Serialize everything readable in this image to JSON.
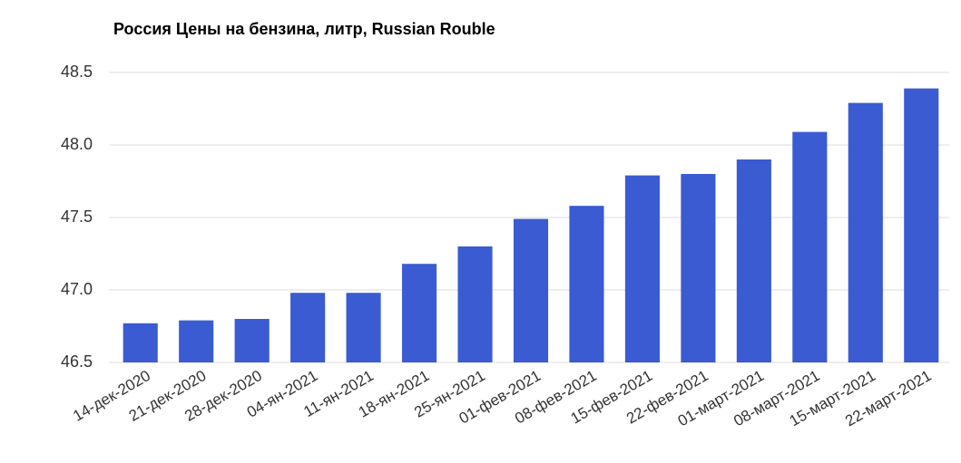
{
  "chart_data": {
    "type": "bar",
    "title": "Россия Цены на бензина, литр, Russian Rouble",
    "categories": [
      "14-дек-2020",
      "21-дек-2020",
      "28-дек-2020",
      "04-ян-2021",
      "11-ян-2021",
      "18-ян-2021",
      "25-ян-2021",
      "01-фев-2021",
      "08-фев-2021",
      "15-фев-2021",
      "22-фев-2021",
      "01-март-2021",
      "08-март-2021",
      "15-март-2021",
      "22-март-2021"
    ],
    "values": [
      46.77,
      46.79,
      46.8,
      46.98,
      46.98,
      47.18,
      47.3,
      47.49,
      47.58,
      47.79,
      47.8,
      47.9,
      48.09,
      48.29,
      48.39
    ],
    "color": "#3a5bd1",
    "ylim": [
      46.5,
      48.5
    ],
    "yticks": [
      46.5,
      {
        "value": 47,
        "label": "47.0"
      },
      47.5,
      {
        "value": 48,
        "label": "48.0"
      },
      48.5
    ],
    "grid": true
  }
}
